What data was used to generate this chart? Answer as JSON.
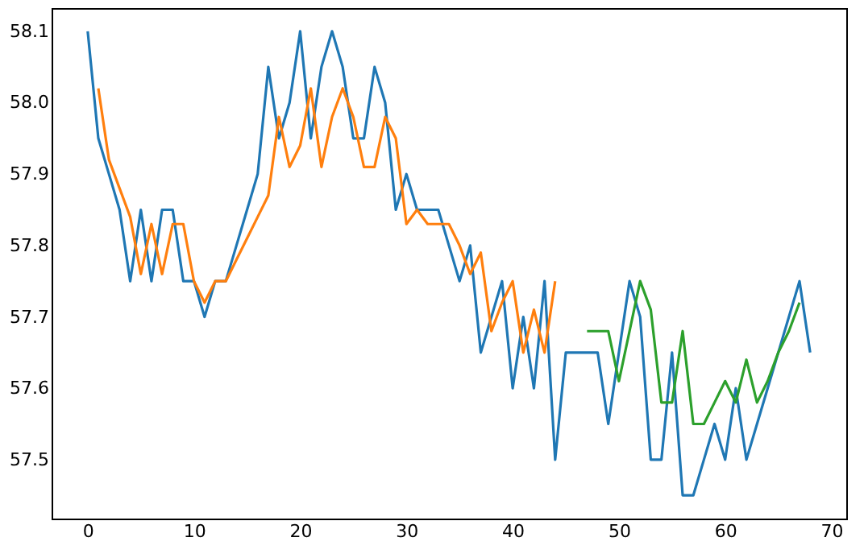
{
  "chart_data": {
    "type": "line",
    "xlim": [
      -3.4,
      71.4
    ],
    "ylim": [
      57.4175,
      58.1325
    ],
    "xticks": [
      0,
      10,
      20,
      30,
      40,
      50,
      60,
      70
    ],
    "yticks": [
      {
        "value": 57.5,
        "label": "57.5"
      },
      {
        "value": 57.6,
        "label": "57.6"
      },
      {
        "value": 57.7,
        "label": "57.7"
      },
      {
        "value": 57.8,
        "label": "57.8"
      },
      {
        "value": 57.9,
        "label": "57.9"
      },
      {
        "value": 58.0,
        "label": "58.0"
      },
      {
        "value": 58.1,
        "label": "58.1"
      }
    ],
    "grid": false,
    "marker": "none",
    "line_style": "solid",
    "series": [
      {
        "color": "#1f77b4",
        "x": [
          0,
          1,
          2,
          3,
          4,
          5,
          6,
          7,
          8,
          9,
          10,
          11,
          12,
          13,
          14,
          15,
          16,
          17,
          18,
          19,
          20,
          21,
          22,
          23,
          24,
          25,
          26,
          27,
          28,
          29,
          30,
          31,
          32,
          33,
          34,
          35,
          36,
          37,
          38,
          39,
          40,
          41,
          42,
          43,
          44,
          45,
          46,
          47,
          48,
          49,
          50,
          51,
          52,
          53,
          54,
          55,
          56,
          57,
          58,
          59,
          60,
          61,
          62,
          63,
          64,
          65,
          66,
          67,
          68
        ],
        "values": [
          58.1,
          57.95,
          57.9,
          57.85,
          57.75,
          57.85,
          57.75,
          57.85,
          57.85,
          57.75,
          57.75,
          57.7,
          57.75,
          57.75,
          57.8,
          57.85,
          57.9,
          58.05,
          57.95,
          58.0,
          58.1,
          57.95,
          58.05,
          58.1,
          58.05,
          57.95,
          57.95,
          58.05,
          58.0,
          57.85,
          57.9,
          57.85,
          57.85,
          57.85,
          57.8,
          57.75,
          57.8,
          57.65,
          57.7,
          57.75,
          57.6,
          57.7,
          57.6,
          57.75,
          57.5,
          57.65,
          57.65,
          57.65,
          57.65,
          57.55,
          57.65,
          57.75,
          57.7,
          57.5,
          57.5,
          57.65,
          57.45,
          57.45,
          57.5,
          57.55,
          57.5,
          57.6,
          57.5,
          57.55,
          57.6,
          57.65,
          57.7,
          57.75,
          57.65
        ]
      },
      {
        "color": "#ff7f0e",
        "x": [
          1,
          2,
          3,
          4,
          5,
          6,
          7,
          8,
          9,
          10,
          11,
          12,
          13,
          14,
          15,
          16,
          17,
          18,
          19,
          20,
          21,
          22,
          23,
          24,
          25,
          26,
          27,
          28,
          29,
          30,
          31,
          32,
          33,
          34,
          35,
          36,
          37,
          38,
          39,
          40,
          41,
          42,
          43,
          44
        ],
        "values": [
          58.02,
          57.92,
          57.88,
          57.84,
          57.76,
          57.83,
          57.76,
          57.83,
          57.83,
          57.75,
          57.72,
          57.75,
          57.75,
          57.78,
          57.81,
          57.84,
          57.87,
          57.98,
          57.91,
          57.94,
          58.02,
          57.91,
          57.98,
          58.02,
          57.98,
          57.91,
          57.91,
          57.98,
          57.95,
          57.83,
          57.85,
          57.83,
          57.83,
          57.83,
          57.8,
          57.76,
          57.79,
          57.68,
          57.72,
          57.75,
          57.65,
          57.71,
          57.65,
          57.75
        ]
      },
      {
        "color": "#2ca02c",
        "x": [
          47,
          48,
          49,
          50,
          51,
          52,
          53,
          54,
          55,
          56,
          57,
          58,
          59,
          60,
          61,
          62,
          63,
          64,
          65,
          66,
          67
        ],
        "values": [
          57.68,
          57.68,
          57.68,
          57.61,
          57.68,
          57.75,
          57.71,
          57.58,
          57.58,
          57.68,
          57.55,
          57.55,
          57.58,
          57.61,
          57.58,
          57.64,
          57.58,
          57.61,
          57.65,
          57.68,
          57.72
        ]
      }
    ]
  }
}
